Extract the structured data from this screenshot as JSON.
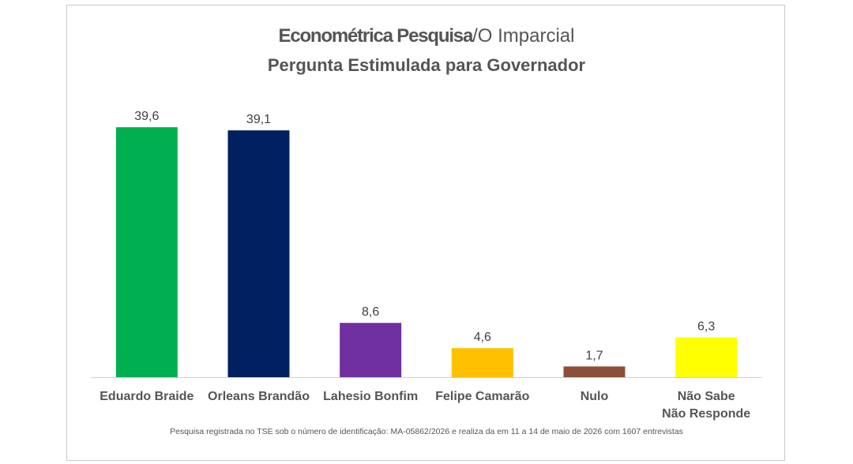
{
  "title": {
    "brand": "Econométrica Pesquisa",
    "separator": "/",
    "partner": "O Imparcial",
    "subtitle": "Pergunta Estimulada para Governador"
  },
  "chart_data": {
    "type": "bar",
    "title": "Econométrica Pesquisa/O Imparcial",
    "subtitle": "Pergunta Estimulada para Governador",
    "xlabel": "",
    "ylabel": "",
    "ylim": [
      0,
      42
    ],
    "grid": false,
    "legend": "none",
    "categories": [
      [
        "Eduardo Braide"
      ],
      [
        "Orleans Brandão"
      ],
      [
        "Lahesio Bonfim"
      ],
      [
        "Felipe Camarão"
      ],
      [
        "Nulo"
      ],
      [
        "Não Sabe",
        "Não Responde"
      ]
    ],
    "values": [
      39.6,
      39.1,
      8.6,
      4.6,
      1.7,
      6.3
    ],
    "value_labels": [
      "39,6",
      "39,1",
      "8,6",
      "4,6",
      "1,7",
      "6,3"
    ],
    "colors": [
      "#00b050",
      "#002060",
      "#7030a0",
      "#ffc000",
      "#8b4f3a",
      "#ffff00"
    ]
  },
  "footnote": "Pesquisa registrada no TSE sob o número de identificação: MA-05862/2026 e realiza da em 11 a 14 de maio de 2026 com 1607 entrevistas"
}
